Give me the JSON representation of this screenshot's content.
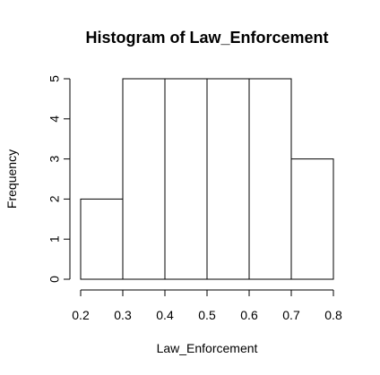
{
  "chart_data": {
    "type": "bar",
    "subtype": "histogram",
    "title": "Histogram of Law_Enforcement",
    "xlabel": "Law_Enforcement",
    "ylabel": "Frequency",
    "bins": [
      {
        "start": 0.2,
        "end": 0.3,
        "count": 2
      },
      {
        "start": 0.3,
        "end": 0.4,
        "count": 5
      },
      {
        "start": 0.4,
        "end": 0.5,
        "count": 5
      },
      {
        "start": 0.5,
        "end": 0.6,
        "count": 5
      },
      {
        "start": 0.6,
        "end": 0.7,
        "count": 5
      },
      {
        "start": 0.7,
        "end": 0.8,
        "count": 3
      }
    ],
    "x_ticks": [
      "0.2",
      "0.3",
      "0.4",
      "0.5",
      "0.6",
      "0.7",
      "0.8"
    ],
    "y_ticks": [
      "0",
      "1",
      "2",
      "3",
      "4",
      "5"
    ],
    "xlim": [
      0.2,
      0.8
    ],
    "ylim": [
      0,
      5
    ],
    "grid": false,
    "colors": {
      "bar_fill": "#ffffff",
      "bar_stroke": "#000000"
    }
  }
}
